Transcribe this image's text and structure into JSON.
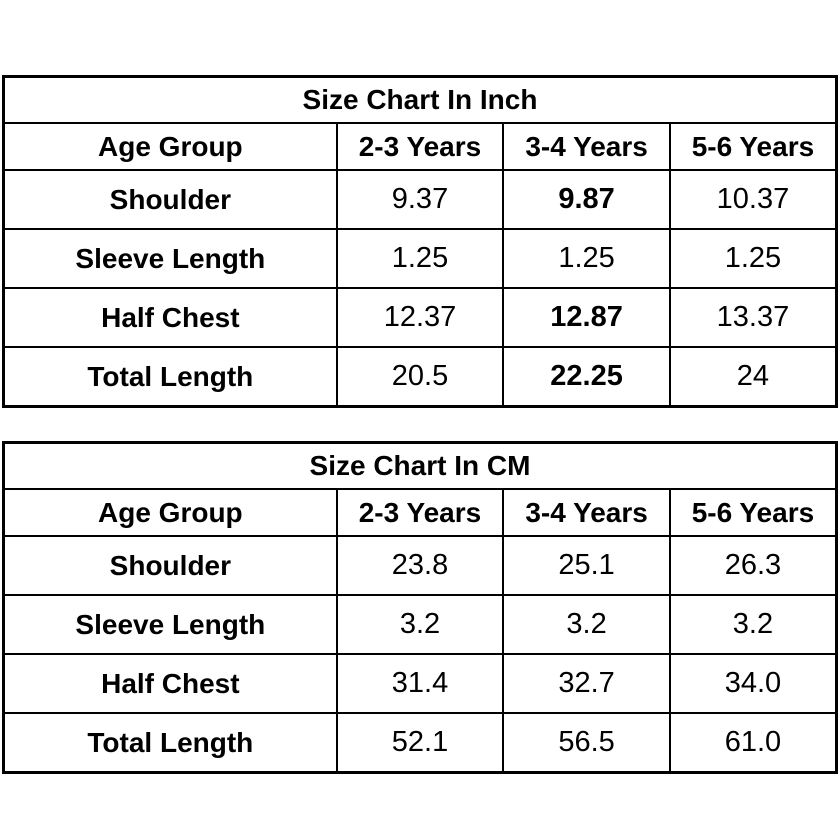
{
  "colors": {
    "background": "#ffffff",
    "border": "#000000",
    "text": "#000000"
  },
  "chart_data": [
    {
      "type": "table",
      "title": "Size Chart In Inch",
      "columns": [
        "Age Group",
        "2-3 Years",
        "3-4 Years",
        "5-6 Years"
      ],
      "rows": [
        {
          "label": "Shoulder",
          "values": [
            "9.37",
            "9.87",
            "10.37"
          ],
          "bold_values": [
            false,
            true,
            false
          ]
        },
        {
          "label": "Sleeve Length",
          "values": [
            "1.25",
            "1.25",
            "1.25"
          ],
          "bold_values": [
            false,
            false,
            false
          ]
        },
        {
          "label": "Half Chest",
          "values": [
            "12.37",
            "12.87",
            "13.37"
          ],
          "bold_values": [
            false,
            true,
            false
          ]
        },
        {
          "label": "Total Length",
          "values": [
            "20.5",
            "22.25",
            "24"
          ],
          "bold_values": [
            false,
            true,
            false
          ]
        }
      ]
    },
    {
      "type": "table",
      "title": "Size Chart In CM",
      "columns": [
        "Age Group",
        "2-3 Years",
        "3-4 Years",
        "5-6 Years"
      ],
      "rows": [
        {
          "label": "Shoulder",
          "values": [
            "23.8",
            "25.1",
            "26.3"
          ],
          "bold_values": [
            false,
            false,
            false
          ]
        },
        {
          "label": "Sleeve Length",
          "values": [
            "3.2",
            "3.2",
            "3.2"
          ],
          "bold_values": [
            false,
            false,
            false
          ]
        },
        {
          "label": "Half Chest",
          "values": [
            "31.4",
            "32.7",
            "34.0"
          ],
          "bold_values": [
            false,
            false,
            false
          ]
        },
        {
          "label": "Total Length",
          "values": [
            "52.1",
            "56.5",
            "61.0"
          ],
          "bold_values": [
            false,
            false,
            false
          ]
        }
      ]
    }
  ]
}
